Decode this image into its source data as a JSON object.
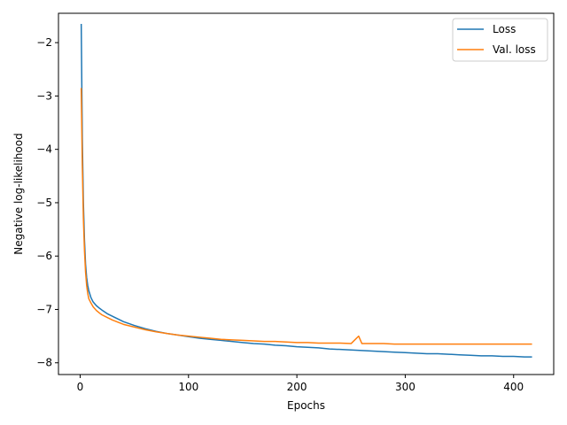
{
  "chart_data": {
    "type": "line",
    "title": "",
    "xlabel": "Epochs",
    "ylabel": "Negative log-likelihood",
    "xlim": [
      -20,
      437
    ],
    "ylim": [
      -8.22,
      -1.45
    ],
    "xticks": [
      0,
      100,
      200,
      300,
      400
    ],
    "yticks": [
      -2,
      -3,
      -4,
      -5,
      -6,
      -7,
      -8
    ],
    "xtick_labels": [
      "0",
      "100",
      "200",
      "300",
      "400"
    ],
    "ytick_labels": [
      "−2",
      "−3",
      "−4",
      "−5",
      "−6",
      "−7",
      "−8"
    ],
    "legend_position": "top-right",
    "grid": false,
    "series": [
      {
        "name": "Loss",
        "color": "#1f77b4",
        "x": [
          1,
          2,
          3,
          4,
          5,
          6,
          7,
          8,
          10,
          12,
          15,
          18,
          20,
          25,
          30,
          35,
          40,
          50,
          60,
          70,
          80,
          90,
          100,
          110,
          120,
          130,
          140,
          150,
          160,
          170,
          180,
          190,
          200,
          210,
          220,
          230,
          240,
          250,
          260,
          270,
          280,
          290,
          300,
          310,
          320,
          330,
          340,
          350,
          360,
          370,
          380,
          390,
          400,
          410,
          417
        ],
        "y": [
          -1.65,
          -3.8,
          -5.0,
          -5.7,
          -6.15,
          -6.4,
          -6.55,
          -6.65,
          -6.78,
          -6.86,
          -6.93,
          -6.98,
          -7.01,
          -7.08,
          -7.13,
          -7.18,
          -7.23,
          -7.3,
          -7.36,
          -7.41,
          -7.45,
          -7.48,
          -7.51,
          -7.54,
          -7.56,
          -7.58,
          -7.6,
          -7.62,
          -7.64,
          -7.65,
          -7.67,
          -7.68,
          -7.7,
          -7.71,
          -7.72,
          -7.74,
          -7.75,
          -7.76,
          -7.77,
          -7.78,
          -7.79,
          -7.8,
          -7.81,
          -7.82,
          -7.83,
          -7.83,
          -7.84,
          -7.85,
          -7.86,
          -7.87,
          -7.87,
          -7.88,
          -7.88,
          -7.89,
          -7.89
        ]
      },
      {
        "name": "Val. loss",
        "color": "#ff7f0e",
        "x": [
          1,
          2,
          3,
          4,
          5,
          6,
          7,
          8,
          10,
          12,
          15,
          18,
          20,
          25,
          30,
          35,
          40,
          50,
          60,
          70,
          80,
          90,
          100,
          110,
          120,
          130,
          140,
          150,
          160,
          170,
          180,
          190,
          200,
          210,
          220,
          230,
          240,
          250,
          257,
          260,
          270,
          280,
          290,
          300,
          310,
          320,
          330,
          340,
          350,
          360,
          370,
          380,
          390,
          400,
          410,
          417
        ],
        "y": [
          -2.85,
          -4.3,
          -5.3,
          -5.9,
          -6.3,
          -6.55,
          -6.7,
          -6.8,
          -6.88,
          -6.95,
          -7.02,
          -7.07,
          -7.1,
          -7.15,
          -7.2,
          -7.24,
          -7.28,
          -7.33,
          -7.38,
          -7.42,
          -7.45,
          -7.48,
          -7.5,
          -7.52,
          -7.54,
          -7.56,
          -7.57,
          -7.58,
          -7.59,
          -7.6,
          -7.6,
          -7.61,
          -7.62,
          -7.62,
          -7.63,
          -7.63,
          -7.63,
          -7.64,
          -7.5,
          -7.64,
          -7.64,
          -7.64,
          -7.65,
          -7.65,
          -7.65,
          -7.65,
          -7.65,
          -7.65,
          -7.65,
          -7.65,
          -7.65,
          -7.65,
          -7.65,
          -7.65,
          -7.65,
          -7.65
        ]
      }
    ]
  }
}
